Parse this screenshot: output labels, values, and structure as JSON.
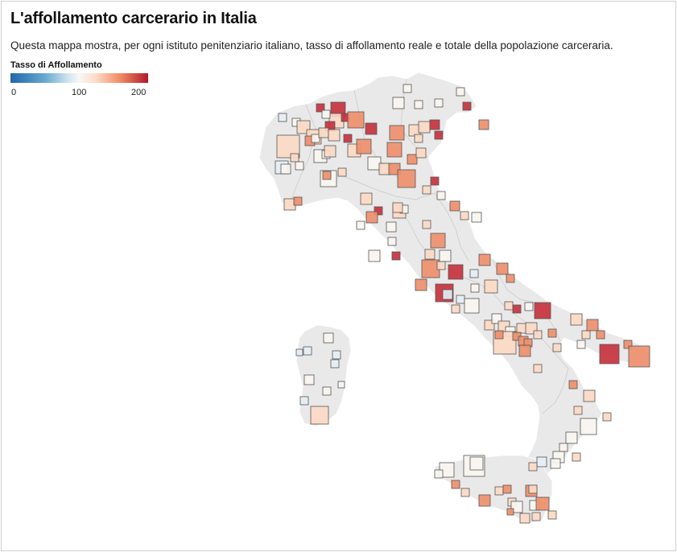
{
  "header": {
    "title": "L'affollamento carcerario in Italia",
    "subtitle": "Questa mappa mostra, per ogni istituto penitenziario italiano, tasso di affollamento reale e totale della popolazione carceraria."
  },
  "legend": {
    "title": "Tasso di Affollamento",
    "ticks": [
      "0",
      "100",
      "200"
    ],
    "colors": [
      "#2166ac",
      "#67a9cf",
      "#d1e5f0",
      "#f7f7f7",
      "#fddbc7",
      "#ef8a62",
      "#b2182b"
    ]
  },
  "map": {
    "land_color": "#e9e9e9",
    "border_color": "#c8c8c8",
    "square_stroke": "#555555"
  }
}
